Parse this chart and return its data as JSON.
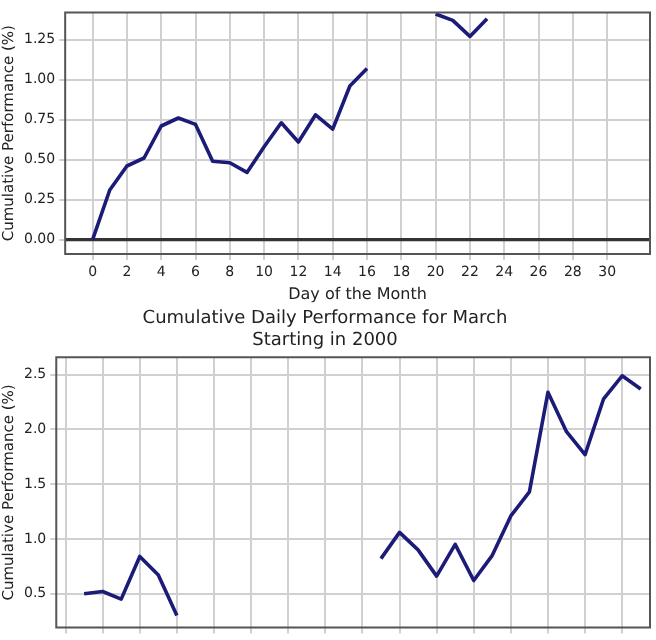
{
  "chart_data": [
    {
      "type": "line",
      "xlabel": "Day of the Month",
      "ylabel": "Cumulative Performance (%)",
      "x": [
        0,
        1,
        2,
        3,
        4,
        5,
        6,
        7,
        8,
        9,
        10,
        11,
        12,
        13,
        14,
        15,
        16,
        17,
        18,
        19,
        20,
        21,
        22,
        23
      ],
      "series": [
        {
          "color": "#1c1c78",
          "values": [
            0,
            0.31,
            0.46,
            0.51,
            0.71,
            0.76,
            0.72,
            0.49,
            0.48,
            0.42,
            0.58,
            0.73,
            0.61,
            0.78,
            0.69,
            0.96,
            1.07,
            null,
            null,
            null,
            1.41,
            1.37,
            1.27,
            1.38
          ]
        }
      ],
      "xlim": [
        -1.6,
        32.5
      ],
      "ylim": [
        -0.09,
        1.42
      ],
      "xticks": [
        0,
        2,
        4,
        6,
        8,
        10,
        12,
        14,
        16,
        18,
        20,
        22,
        24,
        26,
        28,
        30
      ],
      "yticks": [
        {
          "value": 0,
          "label": "0.00"
        },
        {
          "value": 0.25,
          "label": "0.25"
        },
        {
          "value": 0.5,
          "label": "0.50"
        },
        {
          "value": 0.75,
          "label": "0.75"
        },
        {
          "value": 1,
          "label": "1.00"
        },
        {
          "value": 1.25,
          "label": "1.25"
        }
      ],
      "ref_lines": [
        {
          "axis": "y",
          "value": 0,
          "color": "#333333"
        }
      ],
      "grid": true,
      "legend": false,
      "marker": "none",
      "line_style": "solid"
    },
    {
      "type": "line",
      "title": "Cumulative Daily Performance for March\nStarting in 2000",
      "ylabel": "Cumulative Performance (%)",
      "categories": [
        null,
        null,
        null,
        null,
        null,
        null,
        null,
        null,
        null,
        null,
        null,
        null,
        null,
        null,
        null,
        null,
        null,
        null,
        null,
        null,
        null,
        null,
        null,
        null,
        null,
        null,
        null,
        null,
        null,
        null,
        null,
        null
      ],
      "series": [
        {
          "color": "#1c1c78",
          "values": [
            null,
            0.5,
            0.52,
            0.45,
            0.84,
            0.67,
            0.3,
            null,
            null,
            null,
            null,
            null,
            null,
            null,
            null,
            null,
            null,
            0.82,
            1.06,
            0.9,
            0.66,
            0.95,
            0.62,
            0.85,
            1.21,
            1.43,
            2.34,
            1.98,
            1.77,
            2.28,
            2.49,
            2.37
          ]
        }
      ],
      "ylim": [
        0.19,
        2.66
      ],
      "yticks": [
        {
          "value": 0.5,
          "label": "0.5"
        },
        {
          "value": 1,
          "label": "1.0"
        },
        {
          "value": 1.5,
          "label": "1.5"
        },
        {
          "value": 2,
          "label": "2.0"
        },
        {
          "value": 2.5,
          "label": "2.5"
        }
      ],
      "tick_labels": "y",
      "grid": true,
      "legend": false,
      "marker": "none",
      "line_style": "solid"
    }
  ]
}
